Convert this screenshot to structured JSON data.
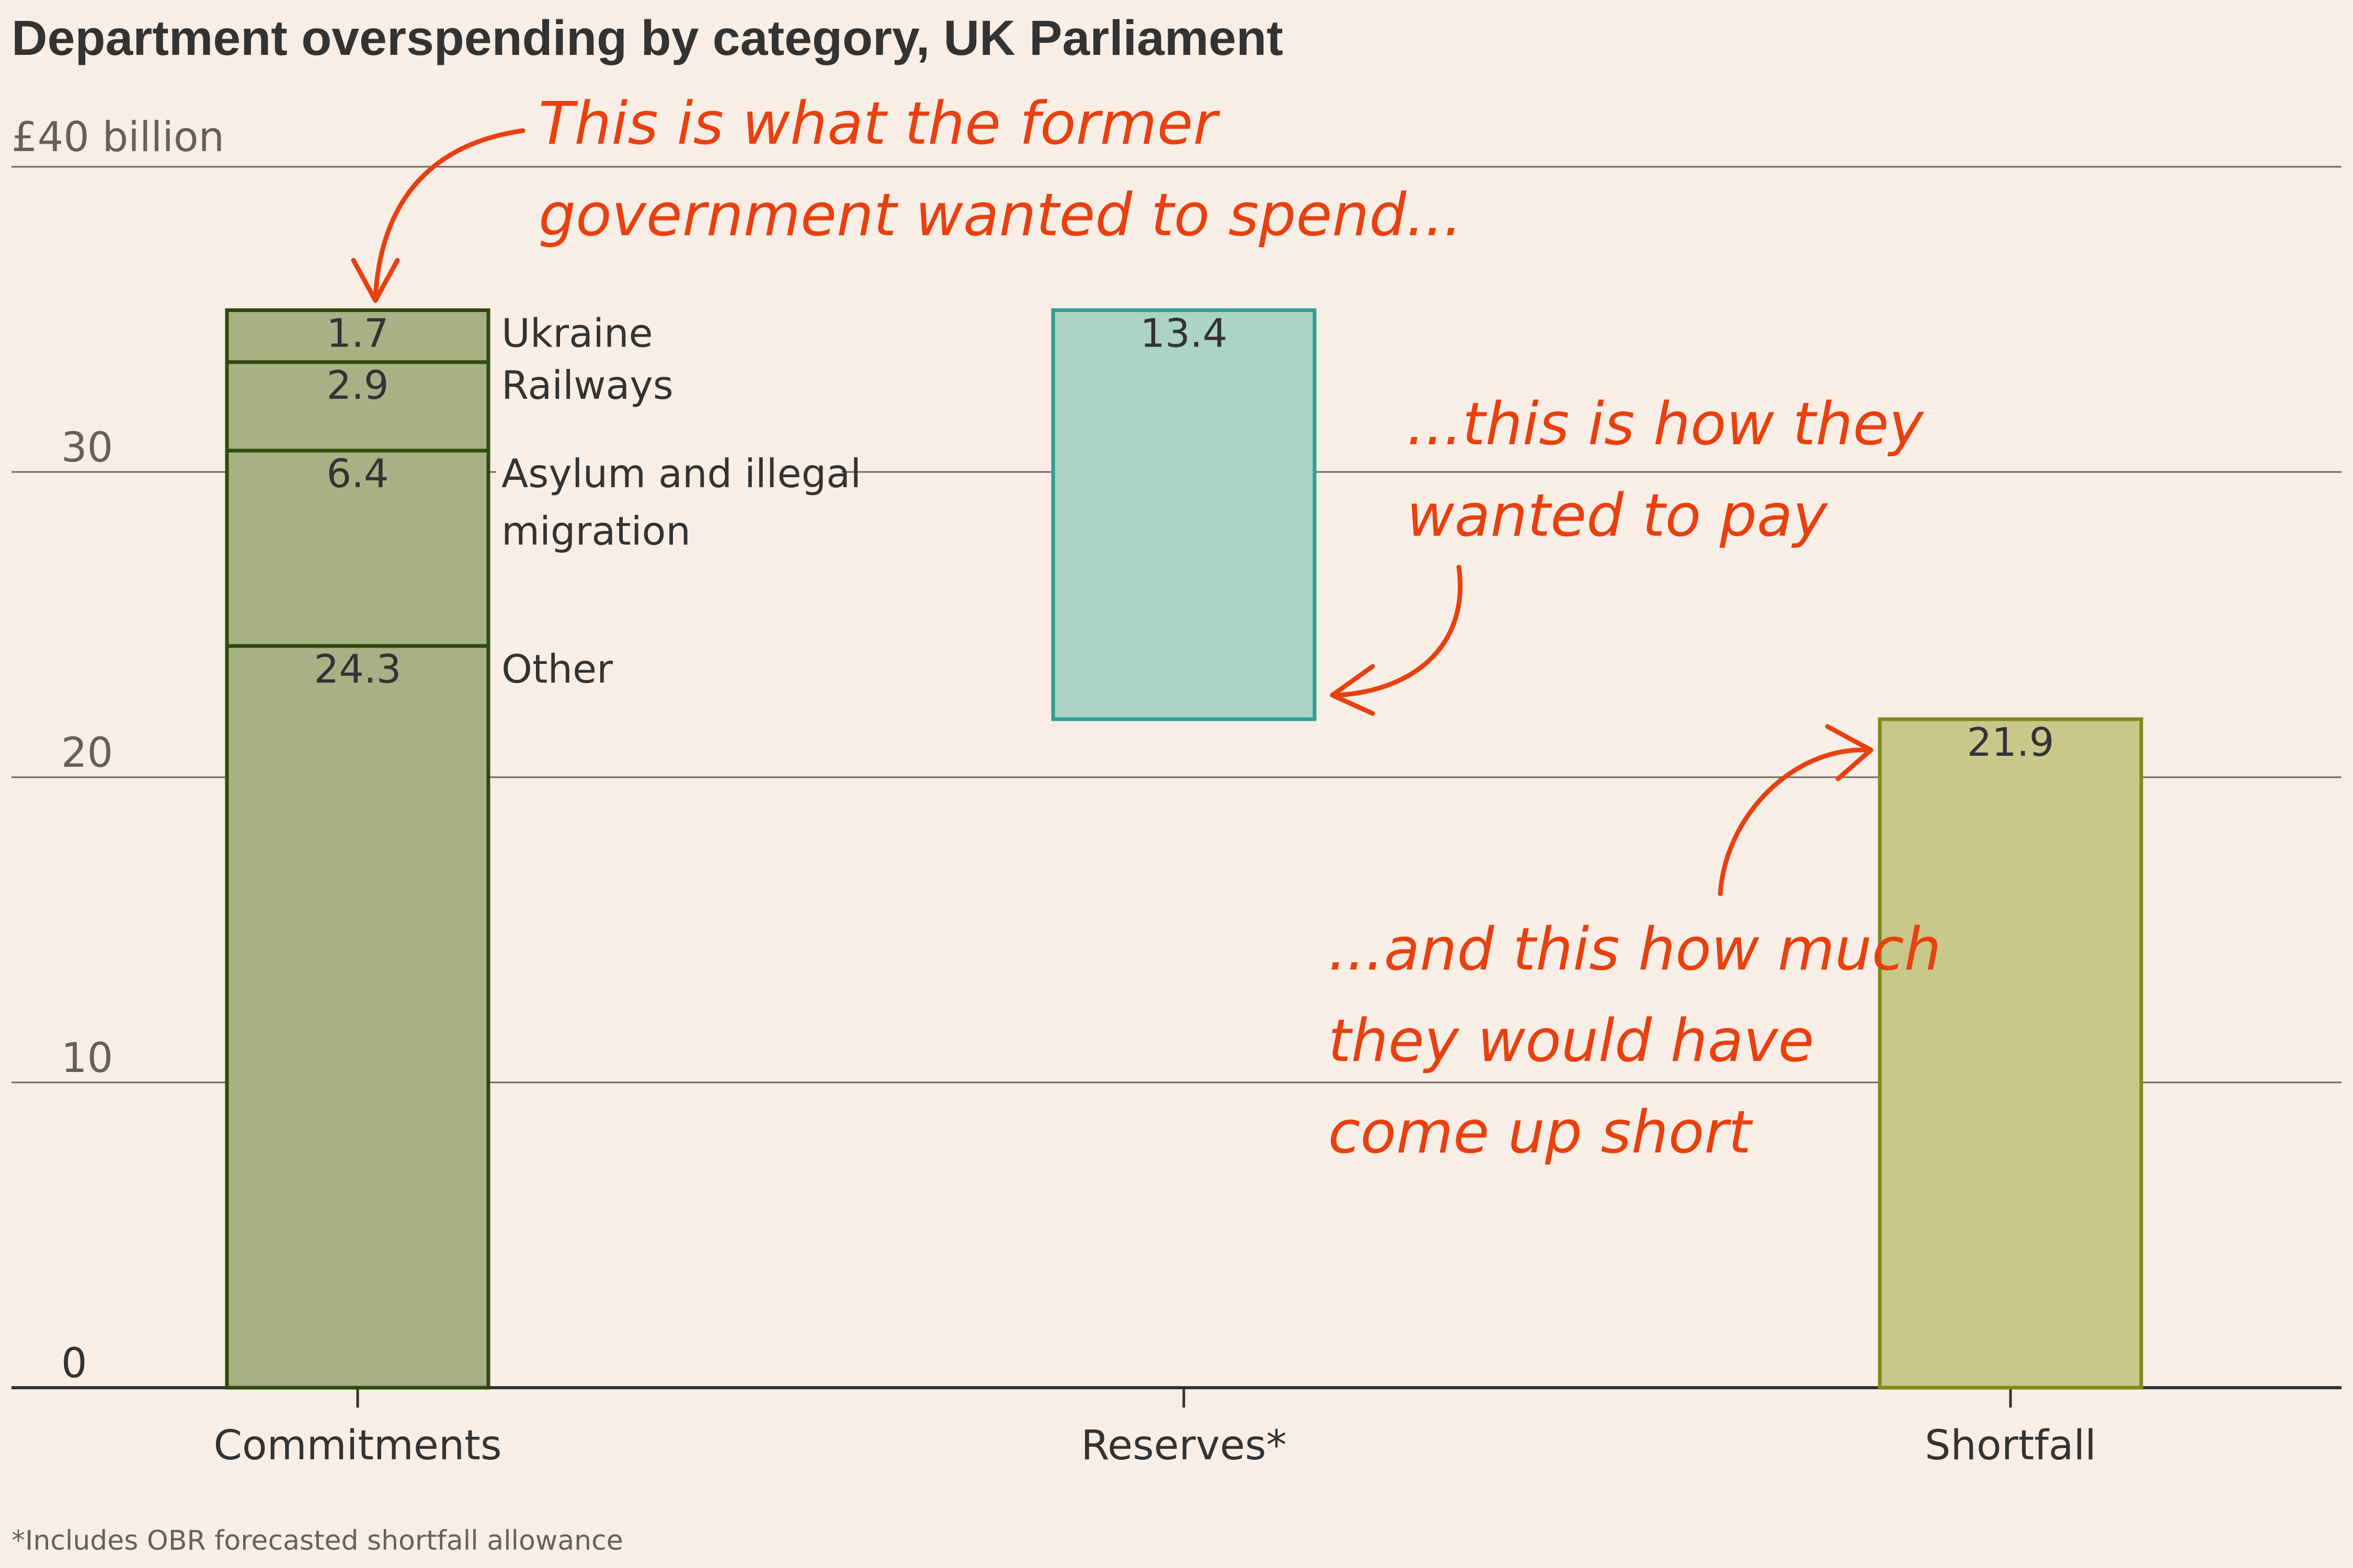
{
  "chart_data": {
    "type": "bar",
    "title": "Department overspending by category, UK Parliament",
    "ylabel": "",
    "unit_label": "£40 billion",
    "ylim": [
      0,
      40
    ],
    "yticks": [
      "0",
      "10",
      "20",
      "30"
    ],
    "grid": true,
    "categories": [
      "Commitments",
      "Reserves*",
      "Shortfall"
    ],
    "stacks": [
      {
        "category": "Commitments",
        "segments": [
          {
            "name": "Other",
            "value": 24.3,
            "label": "24.3",
            "fill": "#a8b086",
            "stroke": "#2f4a0b"
          },
          {
            "name": "Asylum and illegal migration",
            "value": 6.4,
            "label": "6.4",
            "fill": "#a8b086",
            "stroke": "#2f4a0b"
          },
          {
            "name": "Railways",
            "value": 2.9,
            "label": "2.9",
            "fill": "#a8b086",
            "stroke": "#2f4a0b"
          },
          {
            "name": "Ukraine",
            "value": 1.7,
            "label": "1.7",
            "fill": "#a8b086",
            "stroke": "#2f4a0b"
          }
        ]
      },
      {
        "category": "Reserves*",
        "segments": [
          {
            "name": "Reserves",
            "base": 21.9,
            "value": 13.4,
            "label": "13.4",
            "fill": "#abd3c7",
            "stroke": "#2f9f93"
          }
        ]
      },
      {
        "category": "Shortfall",
        "segments": [
          {
            "name": "Shortfall",
            "value": 21.9,
            "label": "21.9",
            "fill": "#c9c78a",
            "stroke": "#828a1a"
          }
        ]
      }
    ],
    "annotations": [
      [
        "This is what the former",
        "government wanted to spend..."
      ],
      [
        "...this is how they",
        "wanted to pay"
      ],
      [
        "...and this how much",
        "they would have",
        "come up short"
      ]
    ],
    "footnote": "*Includes OBR forecasted shortfall allowance"
  },
  "colors": {
    "background": "#f9eee6",
    "annotation": "#e8400f"
  }
}
